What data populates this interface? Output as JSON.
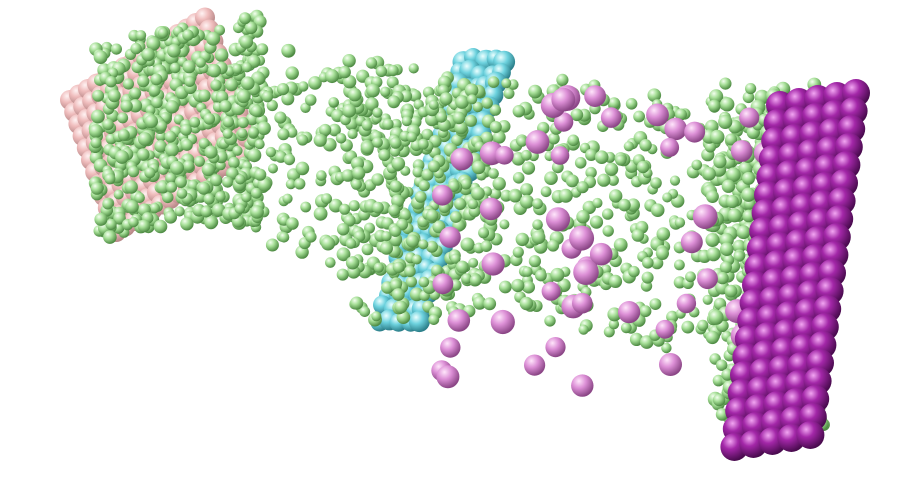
{
  "scene": {
    "kind": "molecular-simulation-render",
    "background": "#ffffff",
    "colors": {
      "electrode_left": "#e8b4b4",
      "electrode_right": "#8e1c92",
      "membrane": "#5fc9d6",
      "solvent": "#9ad98c",
      "ions": "#d98ad3"
    },
    "layers": [
      "left-electrode-lattice",
      "membrane-sheet",
      "solvent-particles",
      "ion-particles",
      "right-electrode-lattice"
    ]
  }
}
